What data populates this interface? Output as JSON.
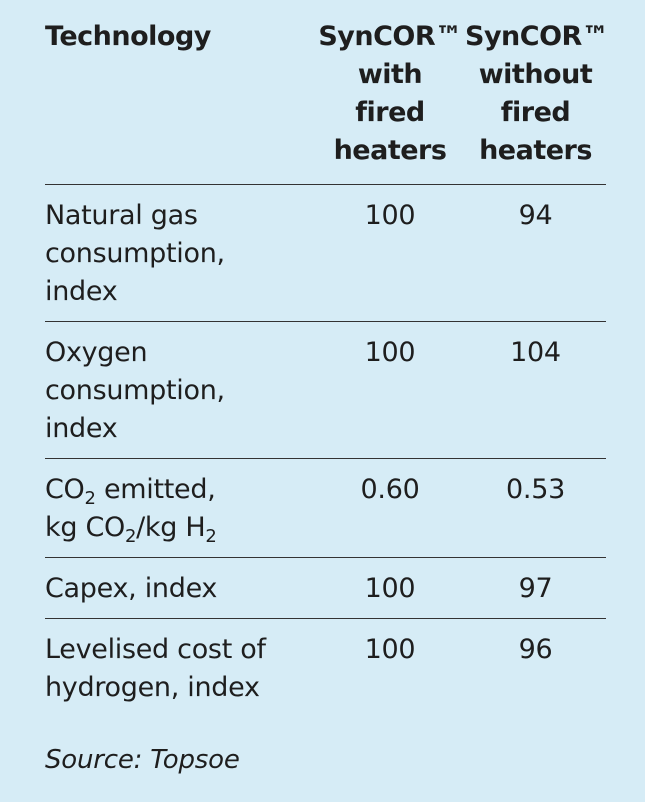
{
  "table": {
    "headers": [
      [
        "Technology"
      ],
      [
        "SynCOR™",
        "with",
        "fired",
        "heaters"
      ],
      [
        "SynCOR™",
        "without",
        "fired",
        "heaters"
      ]
    ],
    "rows": [
      {
        "label": [
          "Natural gas",
          "consumption,",
          "index"
        ],
        "with": "100",
        "without": "94"
      },
      {
        "label": [
          "Oxygen",
          "consumption,",
          "index"
        ],
        "with": "100",
        "without": "104"
      },
      {
        "label_co2": {
          "line1_prefix": "CO",
          "line1_sub": "2",
          "line1_suffix": " emitted,",
          "line2_prefix": "kg CO",
          "line2_sub1": "2",
          "line2_mid": "/kg H",
          "line2_sub2": "2"
        },
        "with": "0.60",
        "without": "0.53"
      },
      {
        "label": [
          "Capex, index"
        ],
        "with": "100",
        "without": "97"
      },
      {
        "label": [
          "Levelised cost of",
          "hydrogen, index"
        ],
        "with": "100",
        "without": "96"
      }
    ]
  },
  "source": "Source: Topsoe"
}
